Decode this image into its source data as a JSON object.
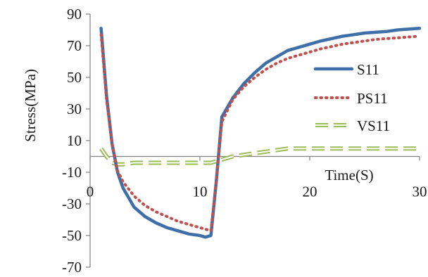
{
  "chart_data": {
    "type": "line",
    "title": "",
    "xlabel": "Time(S)",
    "ylabel": "Stress(MPa)",
    "xlim": [
      0,
      30
    ],
    "ylim": [
      -70,
      90
    ],
    "x_ticks": [
      0,
      10,
      20,
      30
    ],
    "y_ticks": [
      90,
      70,
      50,
      30,
      10,
      -10,
      -30,
      -50,
      -70
    ],
    "x_tick_labels": [
      "0",
      "10",
      "20",
      "30"
    ],
    "y_tick_labels": [
      "90",
      "70",
      "50",
      "30",
      "10",
      "-10",
      "-30",
      "-50",
      "-70"
    ],
    "grid": false,
    "legend_position": "right",
    "series": [
      {
        "name": "S11",
        "style": "solid",
        "color": "#3f6fa8",
        "x": [
          1,
          1.5,
          2,
          2.5,
          3,
          4,
          5,
          6,
          7,
          8,
          9,
          10,
          10.5,
          11,
          11.5,
          12,
          13,
          14,
          15,
          16,
          17,
          18,
          19,
          20,
          21,
          22,
          23,
          24,
          25,
          26,
          27,
          28,
          29,
          30
        ],
        "y": [
          81,
          38,
          8,
          -10,
          -20,
          -32,
          -38,
          -42,
          -45,
          -47,
          -49,
          -50,
          -51,
          -50,
          -15,
          25,
          37,
          46,
          53,
          59,
          63,
          67,
          69,
          71,
          73,
          74.5,
          76,
          77,
          78,
          78.5,
          79,
          80,
          80.5,
          81
        ]
      },
      {
        "name": "PS11",
        "style": "dotted",
        "color": "#c0504d",
        "x": [
          1,
          1.5,
          2,
          2.5,
          3,
          4,
          5,
          6,
          7,
          8,
          9,
          10,
          10.5,
          11,
          11.5,
          12,
          13,
          14,
          15,
          16,
          17,
          18,
          19,
          20,
          21,
          22,
          23,
          24,
          25,
          26,
          27,
          28,
          29,
          30
        ],
        "y": [
          77,
          36,
          8,
          -9,
          -16,
          -25,
          -31,
          -35,
          -38,
          -41,
          -43,
          -45,
          -46,
          -47,
          -15,
          22,
          36,
          44,
          50,
          55,
          59,
          62,
          64,
          66,
          68,
          69.5,
          71,
          72,
          73,
          74,
          74.5,
          75,
          75.5,
          76
        ]
      },
      {
        "name": "VS11",
        "style": "dashed",
        "color": "#9bbb59",
        "x": [
          1,
          1.5,
          2,
          2.5,
          3,
          4,
          5,
          6,
          7,
          8,
          9,
          10,
          11,
          11.5,
          12,
          13,
          14,
          15,
          16,
          17,
          18,
          19,
          20,
          22,
          24,
          26,
          28,
          30
        ],
        "y": [
          5,
          0,
          -4,
          -5,
          -5,
          -4,
          -4,
          -4,
          -4,
          -4,
          -4,
          -4,
          -4,
          -3,
          -2,
          0,
          1,
          2,
          3,
          4,
          5,
          5,
          5,
          5,
          5,
          5,
          5,
          5
        ]
      }
    ]
  }
}
